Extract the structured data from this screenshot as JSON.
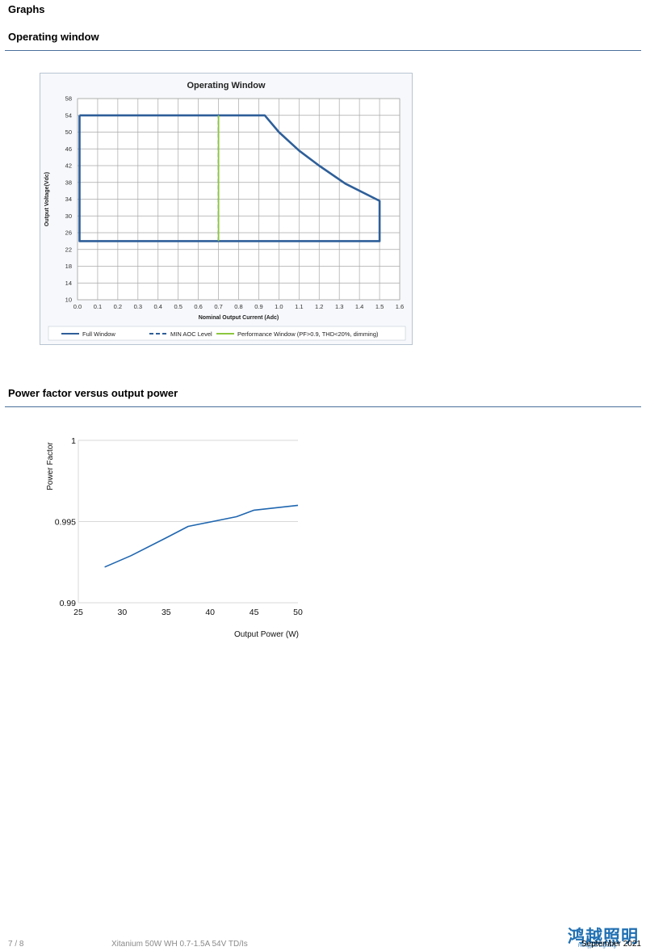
{
  "page": {
    "section_title": "Graphs",
    "sub1_title": "Operating window",
    "sub2_title": "Power factor versus output power"
  },
  "footer": {
    "page_number": "7 / 8",
    "product": "Xitanium 50W WH 0.7-1.5A 54V TD/Is",
    "date": "September 2021",
    "logo_text": "鸿越照明",
    "logo_subtext": "Hongyue Lighting"
  },
  "chart_data": [
    {
      "type": "line",
      "title": "Operating Window",
      "xlabel": "Nominal Output Current (Adc)",
      "ylabel": "Output Voltage(Vdc)",
      "xlim": [
        0.0,
        1.6
      ],
      "ylim": [
        10,
        58
      ],
      "x_ticks": [
        "0.0",
        "0.1",
        "0.2",
        "0.3",
        "0.4",
        "0.5",
        "0.6",
        "0.7",
        "0.8",
        "0.9",
        "1.0",
        "1.1",
        "1.2",
        "1.3",
        "1.4",
        "1.5",
        "1.6"
      ],
      "y_ticks": [
        "10",
        "14",
        "18",
        "22",
        "26",
        "30",
        "34",
        "38",
        "42",
        "46",
        "50",
        "54",
        "58"
      ],
      "grid": true,
      "legend_position": "bottom",
      "series": [
        {
          "name": "Full Window",
          "color": "#2e5f99",
          "dash": "solid",
          "x": [
            0.01,
            0.93,
            1.0,
            1.1,
            1.2,
            1.33,
            1.5,
            1.5,
            0.01,
            0.01
          ],
          "y": [
            54,
            54,
            50,
            45.6,
            42,
            37.7,
            33.6,
            24,
            24,
            54
          ]
        },
        {
          "name": "MIN AOC Level",
          "color": "#2e5f99",
          "dash": "dashed",
          "x": [
            0.7,
            0.7
          ],
          "y": [
            24,
            54
          ]
        },
        {
          "name": "Performance Window (PF>0.9, THD<20%, dimming)",
          "color": "#8dc63f",
          "dash": "solid",
          "x": [
            0.7,
            0.7
          ],
          "y": [
            24,
            54
          ]
        }
      ]
    },
    {
      "type": "line",
      "title": "",
      "xlabel": "Output Power (W)",
      "ylabel": "Power Factor",
      "xlim": [
        25,
        50
      ],
      "ylim": [
        0.99,
        1.0
      ],
      "x_ticks": [
        "25",
        "30",
        "35",
        "40",
        "45",
        "50"
      ],
      "y_ticks": [
        "0.99",
        "0.995",
        "1"
      ],
      "grid": true,
      "series": [
        {
          "color": "#1f66b0",
          "x": [
            28,
            31,
            35,
            37.5,
            43,
            45,
            50
          ],
          "y": [
            0.9922,
            0.9929,
            0.994,
            0.9947,
            0.9953,
            0.9957,
            0.996
          ]
        }
      ]
    }
  ]
}
